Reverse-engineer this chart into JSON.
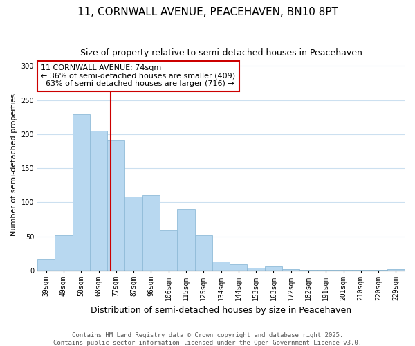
{
  "title": "11, CORNWALL AVENUE, PEACEHAVEN, BN10 8PT",
  "subtitle": "Size of property relative to semi-detached houses in Peacehaven",
  "xlabel": "Distribution of semi-detached houses by size in Peacehaven",
  "ylabel": "Number of semi-detached properties",
  "categories": [
    "39sqm",
    "49sqm",
    "58sqm",
    "68sqm",
    "77sqm",
    "87sqm",
    "96sqm",
    "106sqm",
    "115sqm",
    "125sqm",
    "134sqm",
    "144sqm",
    "153sqm",
    "163sqm",
    "172sqm",
    "182sqm",
    "191sqm",
    "201sqm",
    "210sqm",
    "220sqm",
    "229sqm"
  ],
  "values": [
    17,
    52,
    229,
    205,
    191,
    108,
    110,
    59,
    90,
    52,
    13,
    9,
    4,
    6,
    2,
    1,
    1,
    1,
    1,
    1,
    2
  ],
  "bar_color": "#b8d8f0",
  "bar_edge_color": "#90bcd8",
  "ylim": [
    0,
    310
  ],
  "yticks": [
    0,
    50,
    100,
    150,
    200,
    250,
    300
  ],
  "pct_smaller": 36,
  "count_smaller": 409,
  "pct_larger": 63,
  "count_larger": 716,
  "vline_color": "#cc0000",
  "annotation_box_color": "#cc0000",
  "background_color": "#ffffff",
  "grid_color": "#cce0f0",
  "footer_line1": "Contains HM Land Registry data © Crown copyright and database right 2025.",
  "footer_line2": "Contains public sector information licensed under the Open Government Licence v3.0.",
  "title_fontsize": 11,
  "subtitle_fontsize": 9,
  "xlabel_fontsize": 9,
  "ylabel_fontsize": 8,
  "tick_fontsize": 7,
  "ann_fontsize": 8,
  "footer_fontsize": 6.5
}
